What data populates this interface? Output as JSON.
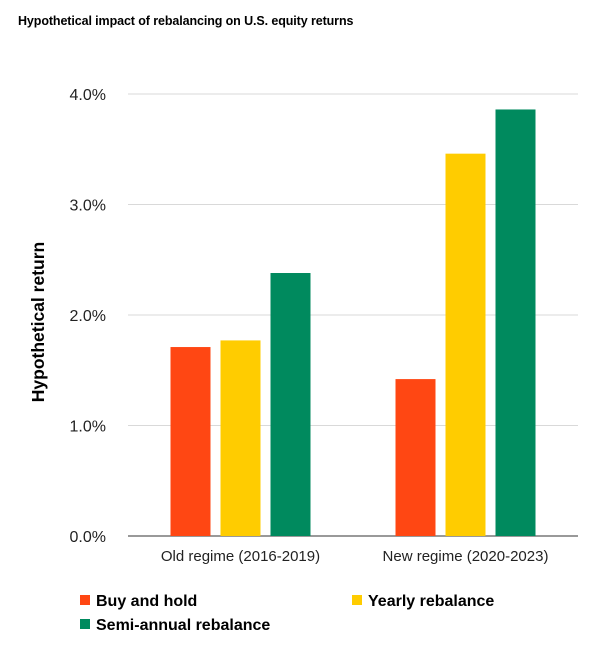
{
  "chart_data": {
    "type": "bar",
    "title": "Hypothetical impact of rebalancing on U.S. equity returns",
    "xlabel": "",
    "ylabel": "Hypothetical return",
    "ylim": [
      0,
      4
    ],
    "yticks": [
      {
        "value": 0,
        "label": "0.0%"
      },
      {
        "value": 1,
        "label": "1.0%"
      },
      {
        "value": 2,
        "label": "2.0%"
      },
      {
        "value": 3,
        "label": "3.0%"
      },
      {
        "value": 4,
        "label": "4.0%"
      }
    ],
    "grid": true,
    "legend_position": "bottom",
    "categories": [
      "Old regime (2016-2019)",
      "New regime (2020-2023)"
    ],
    "series": [
      {
        "name": "Buy and hold",
        "color": "#FF4713",
        "values": [
          1.71,
          1.42
        ]
      },
      {
        "name": "Yearly rebalance",
        "color": "#FFCC00",
        "values": [
          1.77,
          3.46
        ]
      },
      {
        "name": "Semi-annual rebalance",
        "color": "#008A5E",
        "values": [
          2.38,
          3.86
        ]
      }
    ]
  }
}
